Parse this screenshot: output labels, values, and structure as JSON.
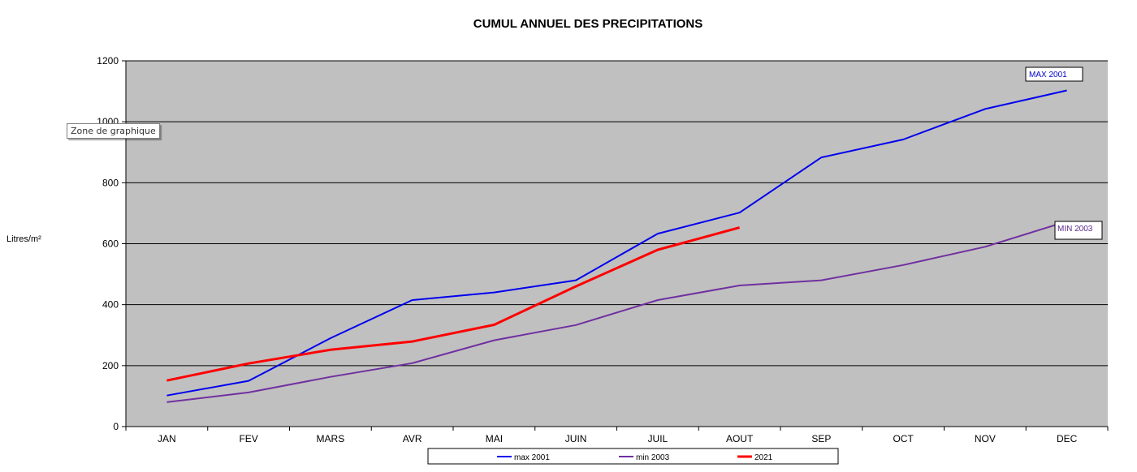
{
  "chart_data": {
    "type": "line",
    "title": "CUMUL ANNUEL DES PRECIPITATIONS",
    "xlabel": "",
    "ylabel": "Litres/m²",
    "categories": [
      "JAN",
      "FEV",
      "MARS",
      "AVR",
      "MAI",
      "JUIN",
      "JUIL",
      "AOUT",
      "SEP",
      "OCT",
      "NOV",
      "DEC"
    ],
    "ylim": [
      0,
      1200
    ],
    "yticks": [
      0,
      200,
      400,
      600,
      800,
      1000,
      1200
    ],
    "grid": true,
    "legend_position": "bottom",
    "series": [
      {
        "name": "max 2001",
        "color": "#0000ee",
        "width": 2,
        "values": [
          102,
          150,
          290,
          415,
          440,
          480,
          633,
          702,
          883,
          942,
          1042,
          1103
        ]
      },
      {
        "name": "min 2003",
        "color": "#7030a0",
        "width": 2,
        "values": [
          80,
          112,
          163,
          208,
          283,
          333,
          415,
          463,
          480,
          530,
          590,
          673
        ]
      },
      {
        "name": "2021",
        "color": "#ff0000",
        "width": 3,
        "values": [
          151,
          207,
          252,
          279,
          334,
          460,
          580,
          653,
          null,
          null,
          null,
          null
        ]
      }
    ],
    "annotations": [
      {
        "text": "MAX 2001",
        "color": "#0000cc"
      },
      {
        "text": "MIN 2003",
        "color": "#5a2a8a"
      }
    ]
  },
  "tooltip": {
    "text": "Zone de graphique"
  },
  "colors": {
    "plot_bg": "#c0c0c0",
    "grid": "#000000",
    "axis": "#000000"
  }
}
